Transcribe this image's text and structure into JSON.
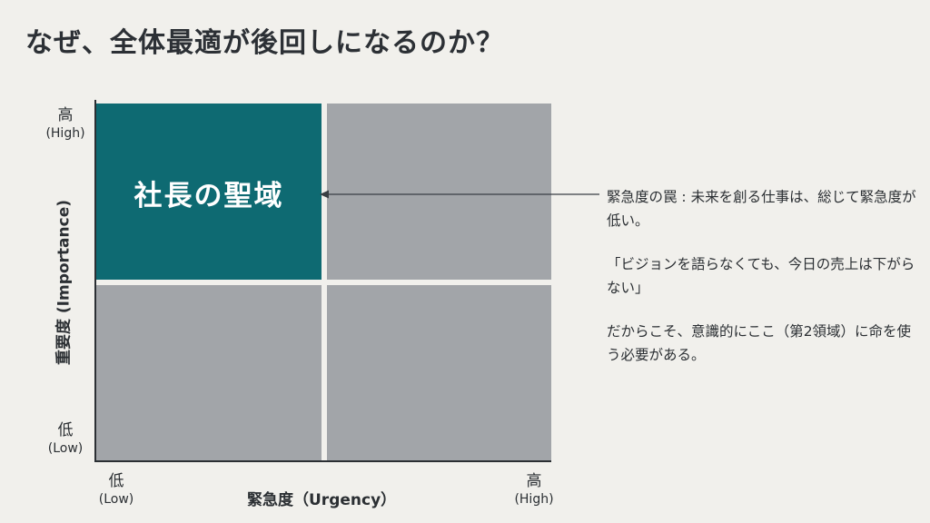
{
  "title": "なぜ、全体最適が後回しになるのか？",
  "matrix": {
    "highlight_label": "社長の聖域",
    "highlight_color": "#0e6a72",
    "other_color": "#a2a5a9",
    "y_axis": {
      "label": "重要度 (Importance)",
      "high": "高",
      "high_en": "(High)",
      "low": "低",
      "low_en": "(Low)"
    },
    "x_axis": {
      "label": "緊急度（Urgency）",
      "low": "低",
      "low_en": "(Low)",
      "high": "高",
      "high_en": "(High)"
    }
  },
  "notes": {
    "p1": "緊急度の罠 : 未来を創る仕事は、総じて緊急度が低い。",
    "p2": "「ビジョンを語らなくても、今日の売上は下がらない」",
    "p3": "だからこそ、意識的にここ（第2領域）に命を使う必要がある。"
  }
}
